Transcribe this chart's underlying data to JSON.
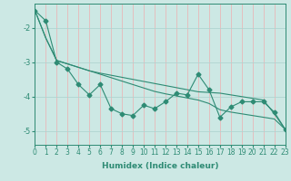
{
  "xlabel": "Humidex (Indice chaleur)",
  "x": [
    0,
    1,
    2,
    3,
    4,
    5,
    6,
    7,
    8,
    9,
    10,
    11,
    12,
    13,
    14,
    15,
    16,
    17,
    18,
    19,
    20,
    21,
    22,
    23
  ],
  "y_main": [
    -1.5,
    -1.8,
    -3.0,
    -3.2,
    -3.65,
    -3.95,
    -3.65,
    -4.35,
    -4.5,
    -4.55,
    -4.25,
    -4.35,
    -4.15,
    -3.9,
    -3.95,
    -3.35,
    -3.8,
    -4.6,
    -4.3,
    -4.15,
    -4.15,
    -4.15,
    -4.45,
    -4.95
  ],
  "y_trend1": [
    -1.5,
    -2.3,
    -2.95,
    -3.05,
    -3.15,
    -3.25,
    -3.32,
    -3.38,
    -3.44,
    -3.5,
    -3.56,
    -3.62,
    -3.68,
    -3.74,
    -3.8,
    -3.86,
    -3.88,
    -3.9,
    -3.95,
    -4.0,
    -4.05,
    -4.1,
    -4.5,
    -4.95
  ],
  "y_trend2": [
    -1.5,
    -2.3,
    -2.95,
    -3.05,
    -3.15,
    -3.25,
    -3.35,
    -3.45,
    -3.55,
    -3.65,
    -3.75,
    -3.85,
    -3.92,
    -3.98,
    -4.04,
    -4.1,
    -4.2,
    -4.38,
    -4.45,
    -4.5,
    -4.55,
    -4.6,
    -4.65,
    -4.95
  ],
  "color": "#2e8b74",
  "bg_color": "#cce8e4",
  "grid_color_v": "#e8b8b8",
  "grid_color_h": "#b0d4d0",
  "ylim": [
    -5.4,
    -1.3
  ],
  "yticks": [
    -5,
    -4,
    -3,
    -2
  ],
  "xlim": [
    0,
    23
  ],
  "marker": "D",
  "markersize": 2.5,
  "linewidth": 0.8,
  "xlabel_fontsize": 6.5,
  "tick_fontsize": 5.5
}
